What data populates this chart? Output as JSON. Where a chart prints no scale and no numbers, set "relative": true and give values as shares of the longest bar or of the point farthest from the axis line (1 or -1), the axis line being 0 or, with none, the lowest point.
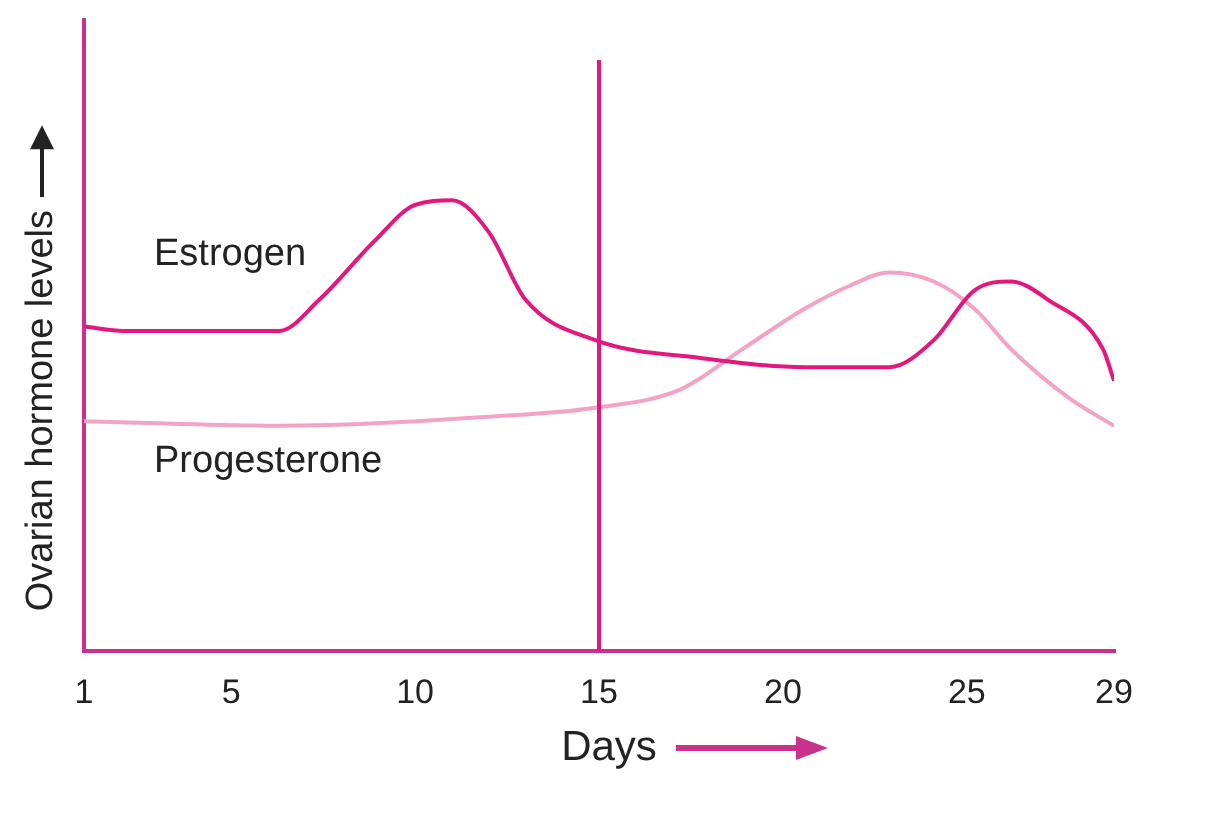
{
  "chart_data": {
    "type": "line",
    "xlabel": "Days",
    "ylabel": "Ovarian hormone levels",
    "relative": true,
    "xlim": [
      1,
      29
    ],
    "xticks": [
      1,
      5,
      10,
      15,
      20,
      25,
      29
    ],
    "grid": false,
    "legend": false,
    "marker": "none",
    "line_style": "solid",
    "ref_lines": [
      {
        "axis": "x",
        "value": 15,
        "color": "#e2187f"
      }
    ],
    "series": [
      {
        "name": "Estrogen",
        "color": "#e2187f",
        "x": [
          1,
          2.2,
          6.3,
          7.4,
          8.9,
          10,
          11,
          12,
          13,
          14.9,
          17.8,
          20.6,
          22.9,
          24.1,
          25.2,
          26.2,
          27.2,
          28.7,
          29
        ],
        "values": [
          0.72,
          0.71,
          0.71,
          0.78,
          0.91,
          0.99,
          1,
          0.93,
          0.78,
          0.69,
          0.65,
          0.63,
          0.63,
          0.69,
          0.8,
          0.82,
          0.78,
          0.67,
          0.6
        ]
      },
      {
        "name": "Progesterone",
        "color": "#f4a3c6",
        "x": [
          1,
          6.3,
          12,
          14.9,
          17.2,
          18.9,
          20.6,
          21.8,
          22.9,
          24.1,
          25.2,
          26.2,
          27.8,
          29
        ],
        "values": [
          0.51,
          0.5,
          0.52,
          0.54,
          0.58,
          0.67,
          0.76,
          0.81,
          0.84,
          0.82,
          0.76,
          0.67,
          0.56,
          0.5
        ]
      }
    ]
  }
}
